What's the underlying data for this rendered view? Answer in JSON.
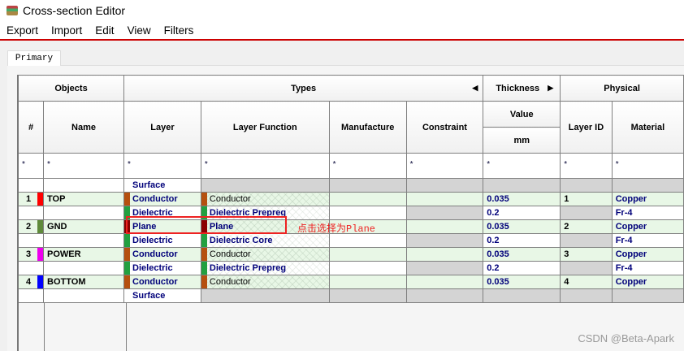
{
  "window": {
    "title": "Cross-section Editor"
  },
  "menu": [
    "Export",
    "Import",
    "Edit",
    "View",
    "Filters"
  ],
  "tabs": [
    "Primary"
  ],
  "headers": {
    "objects": "Objects",
    "types": "Types",
    "thickness": "Thickness",
    "physical": "Physical",
    "num": "#",
    "name": "Name",
    "layer": "Layer",
    "layer_function": "Layer Function",
    "manufacture": "Manufacture",
    "constraint": "Constraint",
    "value": "Value",
    "unit": "mm",
    "layer_id": "Layer ID",
    "material": "Material"
  },
  "filter": "*",
  "rows": [
    {
      "num": "",
      "name": "",
      "color": "",
      "layer": "Surface",
      "layer_color": "",
      "function": "",
      "function_color": "",
      "thickness": "",
      "layer_id": "",
      "material": ""
    },
    {
      "num": "1",
      "name": "TOP",
      "color": "#ff0000",
      "layer": "Conductor",
      "layer_color": "#b5500f",
      "function": "Conductor",
      "function_color": "#b5500f",
      "thickness": "0.035",
      "layer_id": "1",
      "material": "Copper"
    },
    {
      "num": "",
      "name": "",
      "color": "",
      "layer": "Dielectric",
      "layer_color": "#22a040",
      "function": "Dielectric Prepreg",
      "function_color": "#22a040",
      "thickness": "0.2",
      "layer_id": "",
      "material": "Fr-4"
    },
    {
      "num": "2",
      "name": "GND",
      "color": "#5f8a3a",
      "layer": "Plane",
      "layer_color": "#8b0000",
      "function": "Plane",
      "function_color": "#8b0000",
      "thickness": "0.035",
      "layer_id": "2",
      "material": "Copper"
    },
    {
      "num": "",
      "name": "",
      "color": "",
      "layer": "Dielectric",
      "layer_color": "#22a040",
      "function": "Dielectric Core",
      "function_color": "#22a040",
      "thickness": "0.2",
      "layer_id": "",
      "material": "Fr-4"
    },
    {
      "num": "3",
      "name": "POWER",
      "color": "#ee00ee",
      "layer": "Conductor",
      "layer_color": "#b5500f",
      "function": "Conductor",
      "function_color": "#b5500f",
      "thickness": "0.035",
      "layer_id": "3",
      "material": "Copper"
    },
    {
      "num": "",
      "name": "",
      "color": "",
      "layer": "Dielectric",
      "layer_color": "#22a040",
      "function": "Dielectric Prepreg",
      "function_color": "#22a040",
      "thickness": "0.2",
      "layer_id": "",
      "material": "Fr-4"
    },
    {
      "num": "4",
      "name": "BOTTOM",
      "color": "#0000ff",
      "layer": "Conductor",
      "layer_color": "#b5500f",
      "function": "Conductor",
      "function_color": "#b5500f",
      "thickness": "0.035",
      "layer_id": "4",
      "material": "Copper"
    },
    {
      "num": "",
      "name": "",
      "color": "",
      "layer": "Surface",
      "layer_color": "",
      "function": "",
      "function_color": "",
      "thickness": "",
      "layer_id": "",
      "material": ""
    }
  ],
  "annotation": "点击选择为Plane",
  "watermark": "CSDN @Beta-Apark"
}
